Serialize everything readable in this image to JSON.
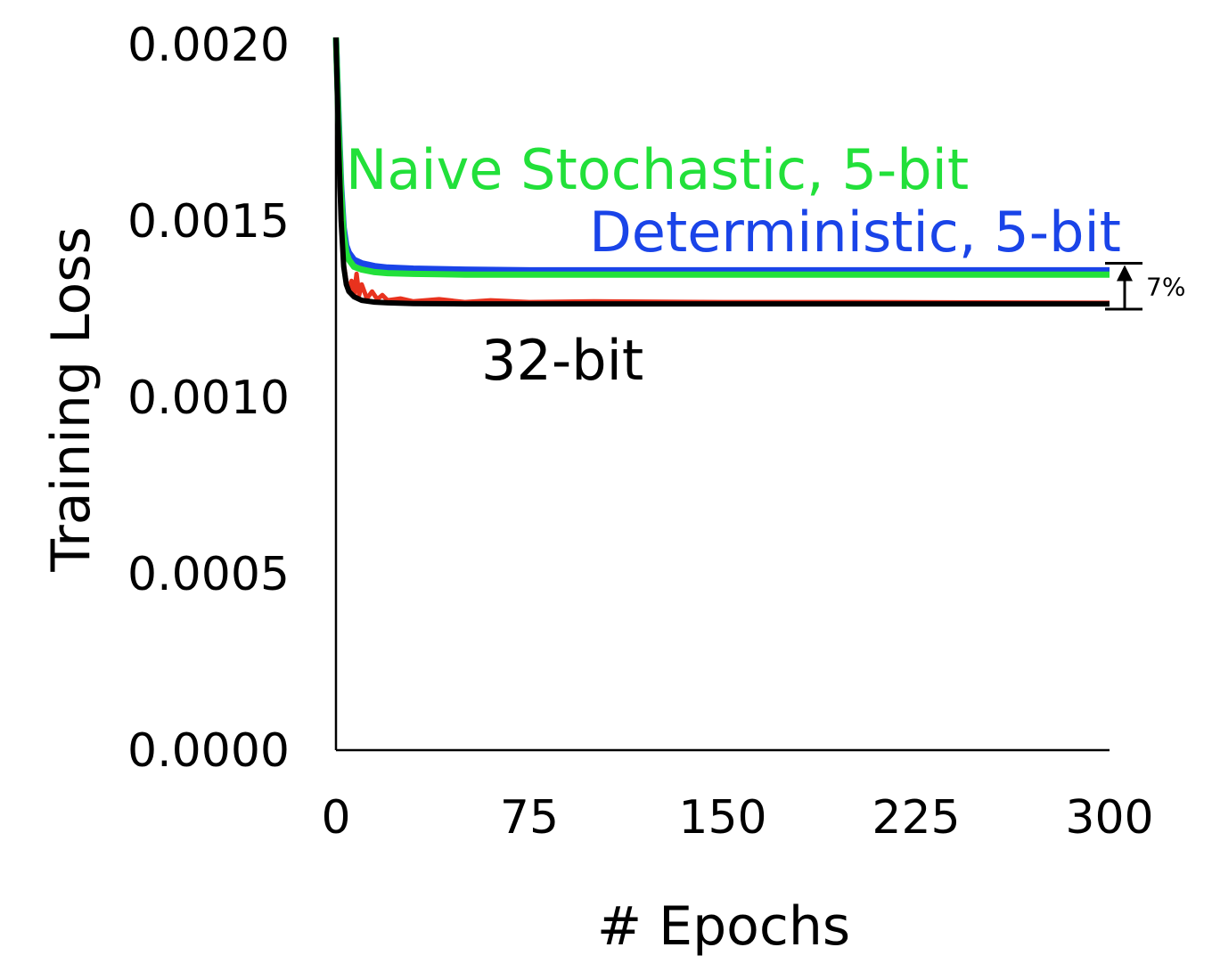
{
  "chart_data": {
    "type": "line",
    "xlabel": "# Epochs",
    "ylabel": "Training Loss",
    "xlim": [
      0,
      300
    ],
    "ylim": [
      0,
      0.002
    ],
    "x_ticks": [
      0,
      75,
      150,
      225,
      300
    ],
    "x_tick_labels": [
      "0",
      "75",
      "150",
      "225",
      "300"
    ],
    "y_ticks": [
      0,
      0.0005,
      0.001,
      0.0015,
      0.002
    ],
    "y_tick_labels": [
      "0.0000",
      "0.0005",
      "0.0010",
      "0.0015",
      "0.0020"
    ],
    "grid": false,
    "legend": "inline labels",
    "series": [
      {
        "name": "Deterministic, 5-bit",
        "color": "#1a44e8",
        "label": "Deterministic, 5-bit",
        "x": [
          0,
          1,
          2,
          3,
          4,
          5,
          7,
          10,
          15,
          20,
          30,
          50,
          75,
          100,
          150,
          200,
          250,
          300
        ],
        "values": [
          0.00202,
          0.0018,
          0.0016,
          0.00148,
          0.00143,
          0.00141,
          0.00139,
          0.00138,
          0.001372,
          0.001368,
          0.001365,
          0.001362,
          0.00136,
          0.00136,
          0.00136,
          0.00136,
          0.00136,
          0.00136
        ]
      },
      {
        "name": "Naive Stochastic, 5-bit",
        "color": "#22e03a",
        "label": "Naive Stochastic, 5-bit",
        "x": [
          0,
          1,
          2,
          3,
          4,
          5,
          7,
          10,
          15,
          20,
          30,
          50,
          75,
          100,
          150,
          200,
          250,
          300
        ],
        "values": [
          0.00202,
          0.00178,
          0.00158,
          0.00146,
          0.00141,
          0.00139,
          0.00137,
          0.001362,
          0.001355,
          0.001352,
          0.00135,
          0.001348,
          0.001348,
          0.001348,
          0.001348,
          0.001348,
          0.001348,
          0.001348
        ]
      },
      {
        "name": "",
        "color": "#e8321e",
        "x": [
          0,
          1,
          2,
          3,
          4,
          5,
          6,
          7,
          8,
          9,
          10,
          12,
          14,
          16,
          18,
          20,
          25,
          30,
          40,
          50,
          60,
          75,
          100,
          150,
          200,
          250,
          300
        ],
        "values": [
          0.00202,
          0.0017,
          0.0015,
          0.00138,
          0.00133,
          0.0013,
          0.00133,
          0.00129,
          0.00135,
          0.00129,
          0.00132,
          0.00128,
          0.0013,
          0.001278,
          0.00129,
          0.001275,
          0.00128,
          0.001272,
          0.001278,
          0.00127,
          0.001275,
          0.00127,
          0.001272,
          0.00127,
          0.00127,
          0.001269,
          0.001268
        ]
      },
      {
        "name": "32-bit",
        "color": "#000000",
        "label": "32-bit",
        "x": [
          0,
          1,
          2,
          3,
          4,
          5,
          7,
          10,
          15,
          20,
          30,
          50,
          75,
          100,
          150,
          200,
          250,
          300
        ],
        "values": [
          0.00202,
          0.00172,
          0.0015,
          0.00137,
          0.00132,
          0.0013,
          0.001285,
          0.001275,
          0.00127,
          0.001268,
          0.001266,
          0.001265,
          0.001265,
          0.001265,
          0.001265,
          0.001265,
          0.001265,
          0.001265
        ]
      }
    ],
    "annotations": [
      {
        "text": "7%",
        "x": 300,
        "y_from": 0.001265,
        "y_to": 0.00136
      }
    ]
  }
}
